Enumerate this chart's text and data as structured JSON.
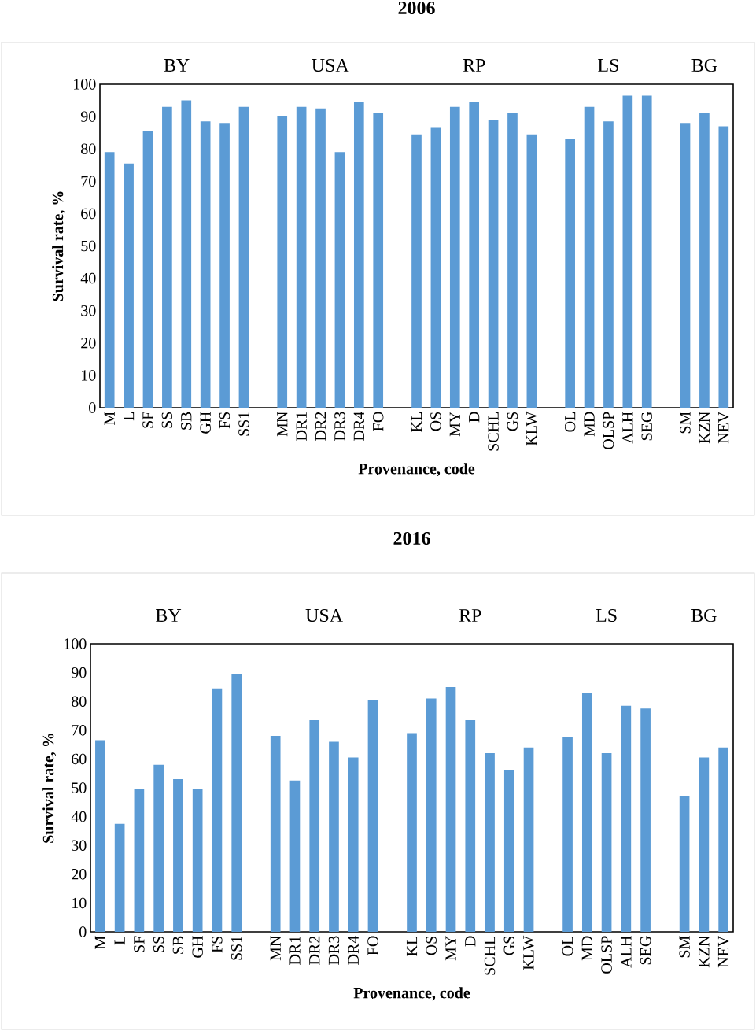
{
  "chart_data": [
    {
      "type": "bar",
      "title": "2006",
      "xlabel": "Provenance, code",
      "ylabel": "Survival rate, %",
      "categories": [
        "M",
        "L",
        "SF",
        "SS",
        "SB",
        "GH",
        "FS",
        "SS1",
        null,
        "MN",
        "DR1",
        "DR2",
        "DR3",
        "DR4",
        "FO",
        null,
        "KL",
        "OS",
        "MY",
        "D",
        "SCHL",
        "GS",
        "KLW",
        null,
        "OL",
        "MD",
        "OLSP",
        "ALH",
        "SEG",
        null,
        "SM",
        "KZN",
        "NEV"
      ],
      "values": [
        79,
        75.5,
        85.5,
        93,
        95,
        88.5,
        88,
        93,
        null,
        90,
        93,
        92.5,
        79,
        94.5,
        91,
        null,
        84.5,
        86.5,
        93,
        94.5,
        89,
        91,
        84.5,
        null,
        83,
        93,
        88.5,
        96.5,
        96.5,
        null,
        88,
        91,
        87
      ],
      "color": "#5b9bd5",
      "ylim": [
        0,
        100
      ],
      "yticks": [
        0,
        10,
        20,
        30,
        40,
        50,
        60,
        70,
        80,
        90,
        100
      ],
      "grid": false,
      "annotations": [
        "BY",
        "USA",
        "RP",
        "LS",
        "BG"
      ]
    },
    {
      "type": "bar",
      "title": "2016",
      "xlabel": "Provenance, code",
      "ylabel": "Survival rate, %",
      "categories": [
        "M",
        "L",
        "SF",
        "SS",
        "SB",
        "GH",
        "FS",
        "SS1",
        null,
        "MN",
        "DR1",
        "DR2",
        "DR3",
        "DR4",
        "FO",
        null,
        "KL",
        "OS",
        "MY",
        "D",
        "SCHL",
        "GS",
        "KLW",
        null,
        "OL",
        "MD",
        "OLSP",
        "ALH",
        "SEG",
        null,
        "SM",
        "KZN",
        "NEV"
      ],
      "values": [
        66.5,
        37.5,
        49.5,
        58,
        53,
        49.5,
        84.5,
        89.5,
        null,
        68,
        52.5,
        73.5,
        66,
        60.5,
        80.5,
        null,
        69,
        81,
        85,
        73.5,
        62,
        56,
        64,
        null,
        67.5,
        83,
        62,
        78.5,
        77.5,
        null,
        47,
        60.5,
        64
      ],
      "color": "#5b9bd5",
      "ylim": [
        0,
        100
      ],
      "yticks": [
        0,
        10,
        20,
        30,
        40,
        50,
        60,
        70,
        80,
        90,
        100
      ],
      "grid": false,
      "annotations": [
        "BY",
        "USA",
        "RP",
        "LS",
        "BG"
      ]
    }
  ]
}
